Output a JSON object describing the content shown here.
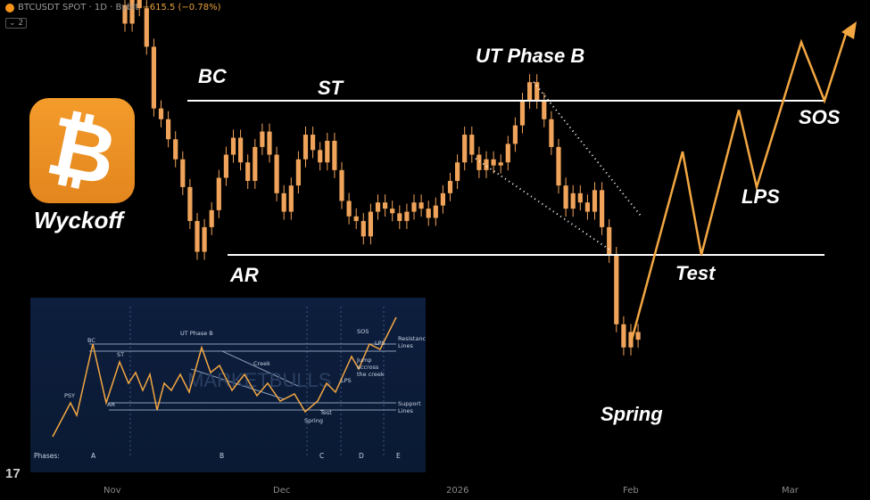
{
  "header": {
    "symbol": "BTCUSDT SPOT · 1D · Bybit",
    "change": "−615.5 (−0.78%)",
    "indicator_count": "⌄ 2"
  },
  "logo": {
    "glyph": "₿",
    "caption": "Wyckoff",
    "color": "#f7931a"
  },
  "colors": {
    "candle": "#f0a35a",
    "projection": "#f3a742",
    "level_line": "#ffffff",
    "inset_bg": "#0d1e3e"
  },
  "labels": {
    "bc": "BC",
    "st": "ST",
    "ut": "UT Phase B",
    "ar": "AR",
    "test": "Test",
    "spring": "Spring",
    "lps": "LPS",
    "sos": "SOS"
  },
  "x_axis": {
    "ticks": [
      "Nov",
      "Dec",
      "2026",
      "Feb",
      "Mar"
    ]
  },
  "inset": {
    "watermark": "MARKETBULLS",
    "phases_label": "Phases:",
    "phases": [
      "A",
      "B",
      "C",
      "D",
      "E"
    ],
    "labels": {
      "psy": "PSY",
      "bc": "BC",
      "st": "ST",
      "ar": "AR",
      "ut": "UT Phase B",
      "creek": "Creek",
      "spring": "Spring",
      "test": "Test",
      "lps": "LPS",
      "sos": "SOS",
      "lps2": "LPS",
      "jump": [
        "Jump",
        "accross",
        "the creek"
      ],
      "resistance": [
        "Resistance",
        "Lines"
      ],
      "support": [
        "Support",
        "Lines"
      ]
    }
  },
  "chart_data": {
    "type": "candlestick",
    "title": "BTCUSDT SPOT · 1D · Bybit",
    "x_axis_labels": [
      "Nov",
      "Dec",
      "2026",
      "Feb",
      "Mar"
    ],
    "y_axis": "price (unlabeled)",
    "resistance_level": 0.0,
    "support_level": 1.0,
    "note_levels": "price axis not printed; values are relative (0 = resistance line, 1 = support line)",
    "candles_relative": [
      [
        -0.62,
        -0.5
      ],
      [
        -0.5,
        -0.8
      ],
      [
        -0.8,
        -0.6
      ],
      [
        -0.6,
        -0.35
      ],
      [
        -0.35,
        0.05
      ],
      [
        0.05,
        0.12
      ],
      [
        0.12,
        0.25
      ],
      [
        0.25,
        0.38
      ],
      [
        0.38,
        0.56
      ],
      [
        0.56,
        0.78
      ],
      [
        0.78,
        0.98
      ],
      [
        0.98,
        0.82
      ],
      [
        0.82,
        0.71
      ],
      [
        0.71,
        0.5
      ],
      [
        0.5,
        0.35
      ],
      [
        0.35,
        0.24
      ],
      [
        0.24,
        0.4
      ],
      [
        0.4,
        0.52
      ],
      [
        0.52,
        0.3
      ],
      [
        0.3,
        0.2
      ],
      [
        0.2,
        0.35
      ],
      [
        0.35,
        0.6
      ],
      [
        0.6,
        0.72
      ],
      [
        0.72,
        0.55
      ],
      [
        0.55,
        0.38
      ],
      [
        0.38,
        0.22
      ],
      [
        0.22,
        0.32
      ],
      [
        0.32,
        0.4
      ],
      [
        0.4,
        0.26
      ],
      [
        0.26,
        0.45
      ],
      [
        0.45,
        0.65
      ],
      [
        0.65,
        0.75
      ],
      [
        0.75,
        0.78
      ],
      [
        0.78,
        0.88
      ],
      [
        0.88,
        0.72
      ],
      [
        0.72,
        0.66
      ],
      [
        0.66,
        0.7
      ],
      [
        0.7,
        0.73
      ],
      [
        0.73,
        0.78
      ],
      [
        0.78,
        0.72
      ],
      [
        0.72,
        0.66
      ],
      [
        0.66,
        0.7
      ],
      [
        0.7,
        0.76
      ],
      [
        0.76,
        0.68
      ],
      [
        0.68,
        0.6
      ],
      [
        0.6,
        0.52
      ],
      [
        0.52,
        0.4
      ],
      [
        0.4,
        0.22
      ],
      [
        0.22,
        0.35
      ],
      [
        0.35,
        0.45
      ],
      [
        0.45,
        0.38
      ],
      [
        0.38,
        0.42
      ],
      [
        0.42,
        0.4
      ],
      [
        0.4,
        0.28
      ],
      [
        0.28,
        0.16
      ],
      [
        0.16,
        0.0
      ],
      [
        0.0,
        -0.12
      ],
      [
        -0.12,
        0.0
      ],
      [
        0.0,
        0.12
      ],
      [
        0.12,
        0.3
      ],
      [
        0.3,
        0.55
      ],
      [
        0.55,
        0.7
      ],
      [
        0.7,
        0.6
      ],
      [
        0.6,
        0.66
      ],
      [
        0.66,
        0.72
      ],
      [
        0.72,
        0.58
      ],
      [
        0.58,
        0.82
      ],
      [
        0.82,
        1.0
      ],
      [
        1.0,
        1.45
      ],
      [
        1.45,
        1.6
      ],
      [
        1.6,
        1.5
      ],
      [
        1.5,
        1.55
      ]
    ],
    "projection_relative": [
      {
        "point": "Spring",
        "y": 1.55
      },
      {
        "point": "rally",
        "y": 0.33
      },
      {
        "point": "Test",
        "y": 1.0
      },
      {
        "point": "rally",
        "y": 0.06
      },
      {
        "point": "LPS",
        "y": 0.56
      },
      {
        "point": "rally",
        "y": -0.38
      },
      {
        "point": "SOS",
        "y": 0.0
      },
      {
        "point": "markup",
        "y": -0.47
      }
    ]
  }
}
